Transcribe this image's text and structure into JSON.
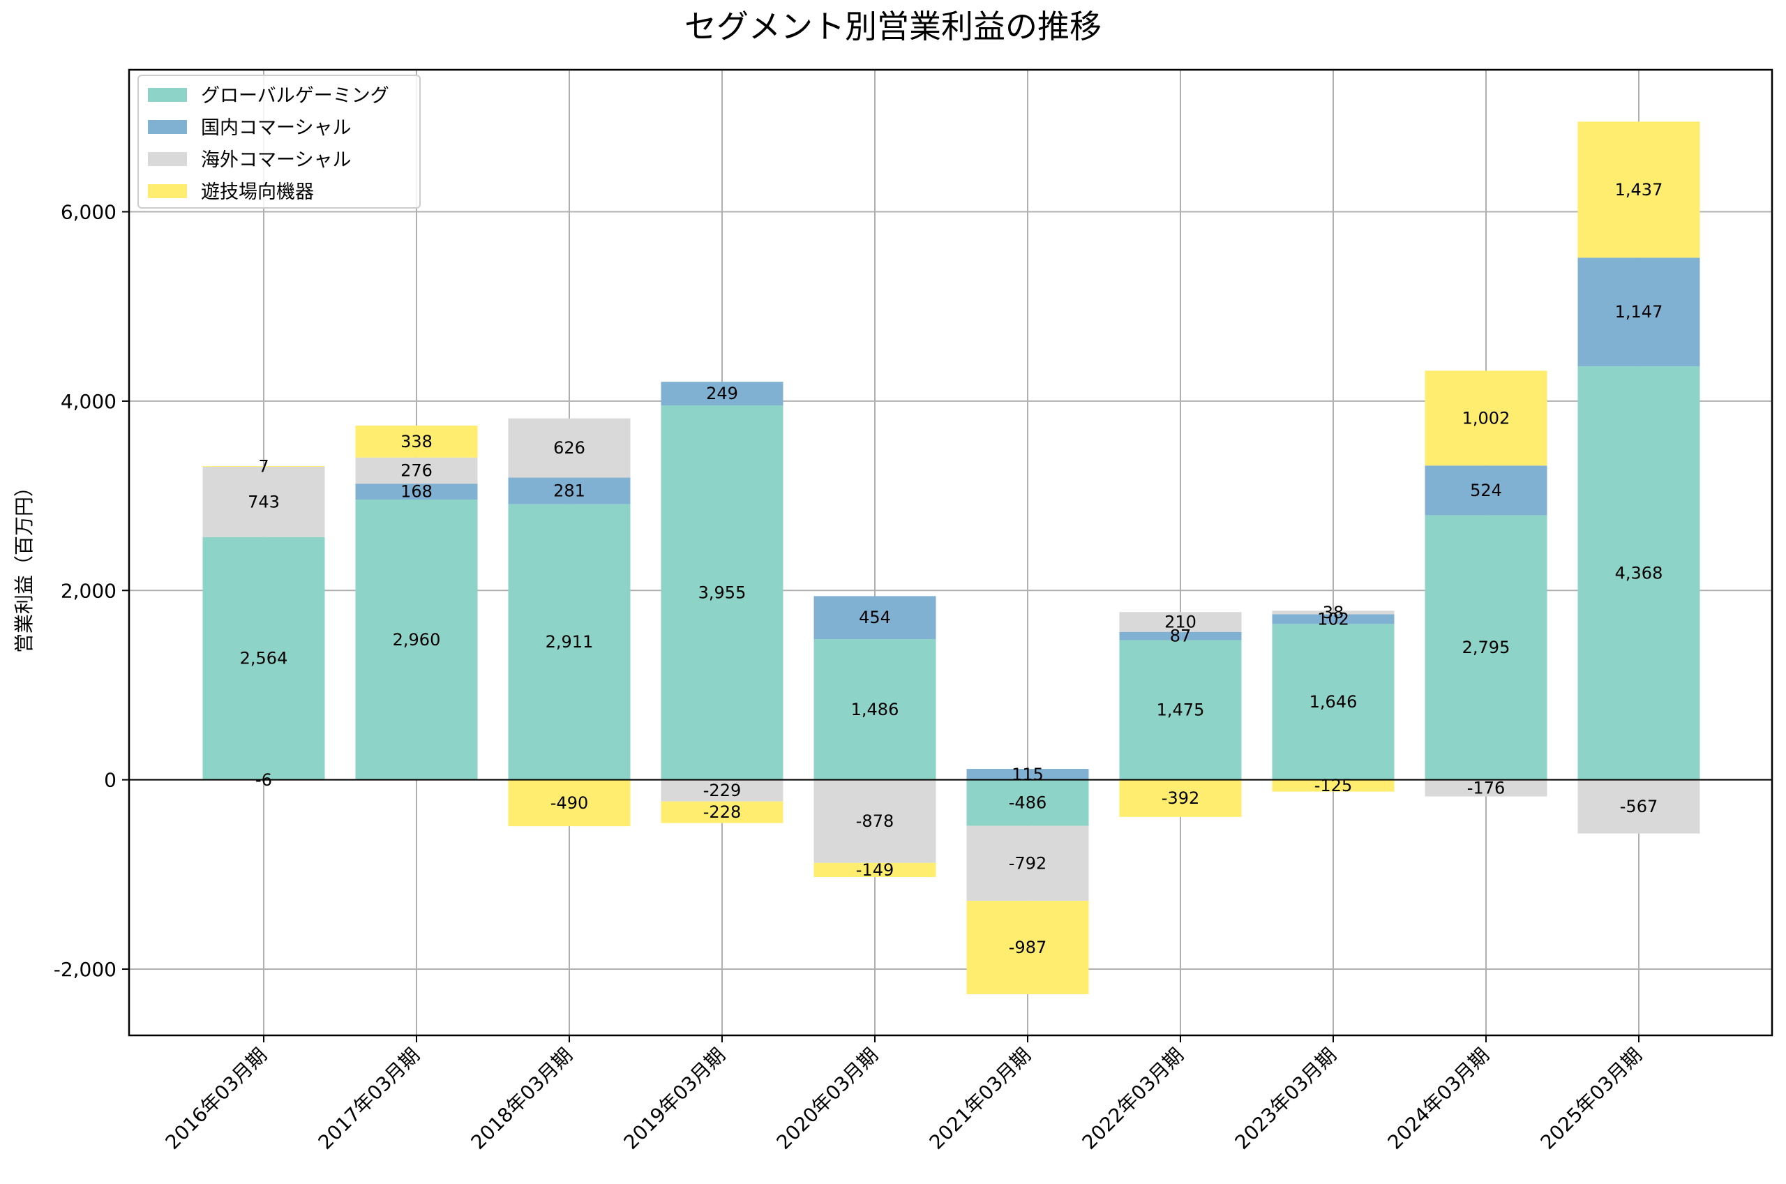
{
  "chart_data": {
    "type": "bar",
    "stacked": true,
    "title": "セグメント別営業利益の推移",
    "ylabel": "営業利益（百万円）",
    "xlabel": "",
    "ylim": [
      -2700,
      7500
    ],
    "yticks": [
      -2000,
      0,
      2000,
      4000,
      6000
    ],
    "ytick_labels": [
      "-2,000",
      "0",
      "2,000",
      "4,000",
      "6,000"
    ],
    "grid": true,
    "legend_position": "top-left",
    "categories": [
      "2016年03月期",
      "2017年03月期",
      "2018年03月期",
      "2019年03月期",
      "2020年03月期",
      "2021年03月期",
      "2022年03月期",
      "2023年03月期",
      "2024年03月期",
      "2025年03月期"
    ],
    "series": [
      {
        "name": "グローバルゲーミング",
        "color": "#8dd3c7",
        "values": [
          2564,
          2960,
          2911,
          3955,
          1486,
          -486,
          1475,
          1646,
          2795,
          4368
        ]
      },
      {
        "name": "国内コマーシャル",
        "color": "#80b1d3",
        "values": [
          -6,
          168,
          281,
          249,
          454,
          115,
          87,
          102,
          524,
          1147
        ]
      },
      {
        "name": "海外コマーシャル",
        "color": "#d9d9d9",
        "values": [
          743,
          276,
          626,
          -229,
          -878,
          -792,
          210,
          38,
          -176,
          -567
        ]
      },
      {
        "name": "遊技場向機器",
        "color": "#ffed6f",
        "values": [
          7,
          338,
          -490,
          -228,
          -149,
          -987,
          -392,
          -125,
          1002,
          1437
        ]
      }
    ]
  }
}
